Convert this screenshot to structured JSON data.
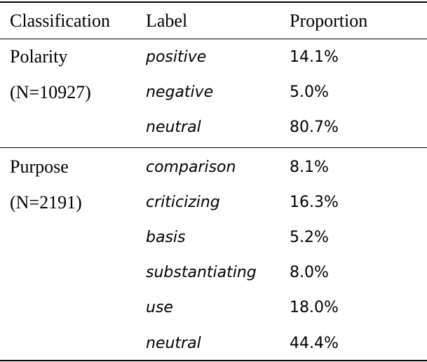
{
  "table": {
    "headers": [
      "Classification",
      "Label",
      "Proportion"
    ],
    "groups": [
      {
        "classification": "Polarity",
        "count": "(N=10927)",
        "rows": [
          {
            "label": "positive",
            "proportion": "14.1%"
          },
          {
            "label": "negative",
            "proportion": "5.0%"
          },
          {
            "label": "neutral",
            "proportion": "80.7%"
          }
        ]
      },
      {
        "classification": "Purpose",
        "count": "(N=2191)",
        "rows": [
          {
            "label": "comparison",
            "proportion": "8.1%"
          },
          {
            "label": "criticizing",
            "proportion": "16.3%"
          },
          {
            "label": "basis",
            "proportion": "5.2%"
          },
          {
            "label": "substantiating",
            "proportion": "8.0%"
          },
          {
            "label": "use",
            "proportion": "18.0%"
          },
          {
            "label": "neutral",
            "proportion": "44.4%"
          }
        ]
      }
    ]
  }
}
